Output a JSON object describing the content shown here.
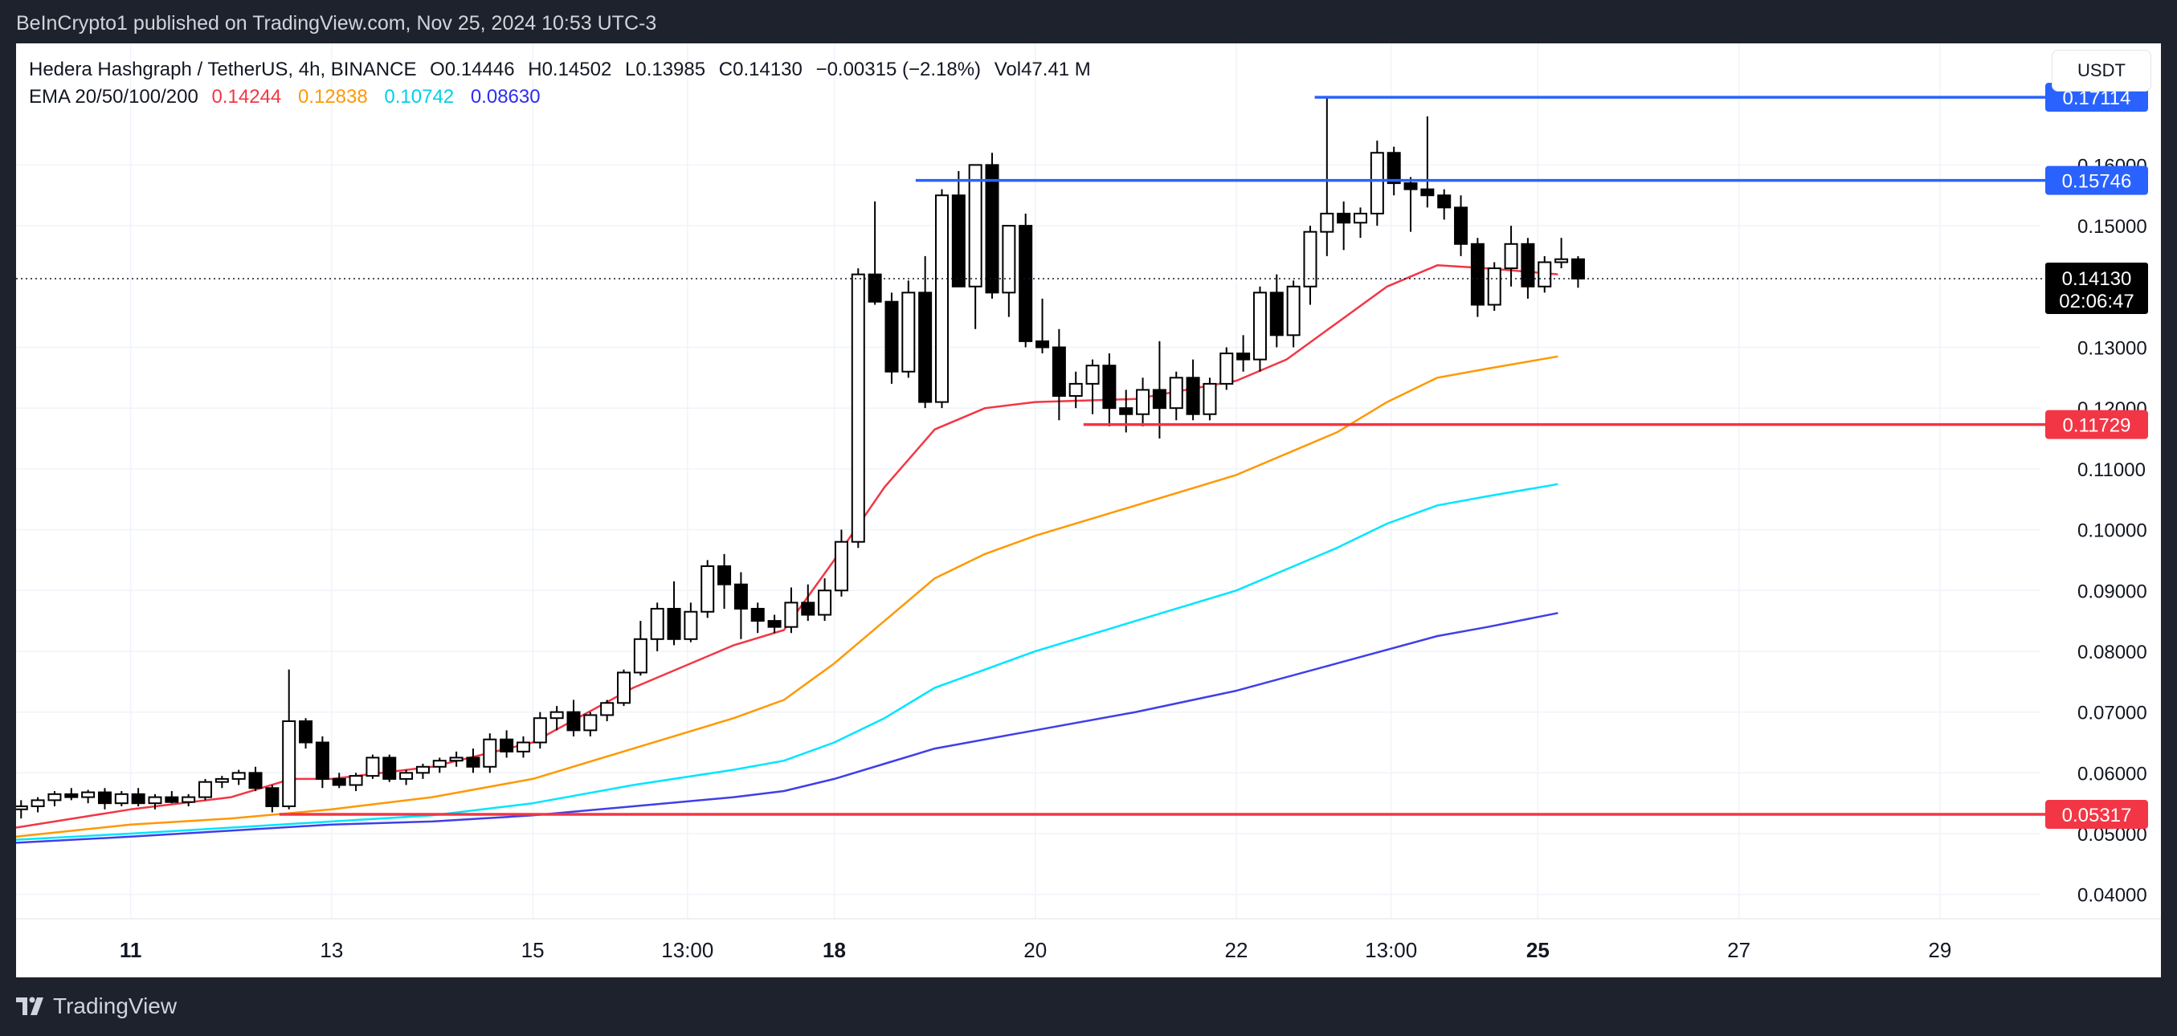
{
  "header": {
    "published": "BeInCrypto1 published on TradingView.com, Nov 25, 2024 10:53 UTC-3"
  },
  "legend": {
    "symbol": "Hedera Hashgraph / TetherUS, 4h, BINANCE",
    "open": "O0.14446",
    "high": "H0.14502",
    "low": "L0.13985",
    "close": "C0.14130",
    "change": "−0.00315 (−2.18%)",
    "volume": "Vol47.41 M",
    "ema_label": "EMA 20/50/100/200",
    "ema_values": [
      "0.14244",
      "0.12838",
      "0.10742",
      "0.08630"
    ]
  },
  "currency_button": "USDT",
  "footer": {
    "brand": "TradingView"
  },
  "colors": {
    "ema20": "#f23645",
    "ema50": "#ff9800",
    "ema100": "#00e5ff",
    "ema200": "#3f3fe8",
    "resistance": "#2962ff",
    "support": "#f23645",
    "candle_up": "#ffffff",
    "candle_down": "#000000"
  },
  "chart_data": {
    "type": "candlestick",
    "y_ticks": [
      "0.04000",
      "0.05000",
      "0.06000",
      "0.07000",
      "0.08000",
      "0.09000",
      "0.10000",
      "0.11000",
      "0.12000",
      "0.13000",
      "0.15000",
      "0.16000"
    ],
    "ylim": [
      0.036,
      0.18
    ],
    "x_ticks": [
      {
        "label": "11",
        "day": 11,
        "bold": true
      },
      {
        "label": "13",
        "day": 13,
        "bold": false
      },
      {
        "label": "15",
        "day": 15,
        "bold": false
      },
      {
        "label": "13:00",
        "day": 16.54,
        "bold": false
      },
      {
        "label": "18",
        "day": 18,
        "bold": true
      },
      {
        "label": "20",
        "day": 20,
        "bold": false
      },
      {
        "label": "22",
        "day": 22,
        "bold": false
      },
      {
        "label": "13:00",
        "day": 23.54,
        "bold": false
      },
      {
        "label": "25",
        "day": 25,
        "bold": true
      },
      {
        "label": "27",
        "day": 27,
        "bold": false
      },
      {
        "label": "29",
        "day": 29,
        "bold": false
      }
    ],
    "xlim": [
      9.86,
      30.0
    ],
    "current_price": {
      "value": 0.1413,
      "label": "0.14130",
      "countdown": "02:06:47"
    },
    "levels": [
      {
        "name": "resistance-2",
        "value": 0.17114,
        "label": "0.17114",
        "type": "resistance",
        "start_day": 22.78
      },
      {
        "name": "resistance-1",
        "value": 0.15746,
        "label": "0.15746",
        "type": "resistance",
        "start_day": 18.81
      },
      {
        "name": "support-1",
        "value": 0.11729,
        "label": "0.11729",
        "type": "support",
        "start_day": 20.48
      },
      {
        "name": "support-2",
        "value": 0.05317,
        "label": "0.05317",
        "type": "support",
        "start_day": 12.48
      }
    ],
    "candles": [
      [
        0.054,
        0.0555,
        0.0525,
        0.0545
      ],
      [
        0.0545,
        0.056,
        0.0535,
        0.0555
      ],
      [
        0.0555,
        0.057,
        0.0545,
        0.0565
      ],
      [
        0.0565,
        0.0575,
        0.0555,
        0.056
      ],
      [
        0.056,
        0.0572,
        0.055,
        0.0568
      ],
      [
        0.0568,
        0.0575,
        0.054,
        0.055
      ],
      [
        0.055,
        0.057,
        0.0545,
        0.0565
      ],
      [
        0.0565,
        0.0575,
        0.0545,
        0.055
      ],
      [
        0.055,
        0.0565,
        0.054,
        0.056
      ],
      [
        0.056,
        0.057,
        0.055,
        0.0552
      ],
      [
        0.0552,
        0.0565,
        0.0545,
        0.056
      ],
      [
        0.056,
        0.059,
        0.0555,
        0.0585
      ],
      [
        0.0585,
        0.0595,
        0.0575,
        0.059
      ],
      [
        0.059,
        0.0605,
        0.058,
        0.06
      ],
      [
        0.06,
        0.061,
        0.057,
        0.0575
      ],
      [
        0.0575,
        0.058,
        0.0535,
        0.0545
      ],
      [
        0.0545,
        0.077,
        0.054,
        0.0685
      ],
      [
        0.0685,
        0.069,
        0.064,
        0.065
      ],
      [
        0.065,
        0.066,
        0.0575,
        0.059
      ],
      [
        0.059,
        0.06,
        0.0575,
        0.058
      ],
      [
        0.058,
        0.06,
        0.057,
        0.0595
      ],
      [
        0.0595,
        0.063,
        0.059,
        0.0625
      ],
      [
        0.0625,
        0.063,
        0.0585,
        0.059
      ],
      [
        0.059,
        0.0605,
        0.058,
        0.06
      ],
      [
        0.06,
        0.0615,
        0.059,
        0.061
      ],
      [
        0.061,
        0.0625,
        0.06,
        0.062
      ],
      [
        0.062,
        0.0635,
        0.061,
        0.0625
      ],
      [
        0.0625,
        0.064,
        0.06,
        0.061
      ],
      [
        0.061,
        0.0665,
        0.06,
        0.0655
      ],
      [
        0.0655,
        0.067,
        0.0625,
        0.0635
      ],
      [
        0.0635,
        0.066,
        0.0625,
        0.065
      ],
      [
        0.065,
        0.07,
        0.064,
        0.069
      ],
      [
        0.069,
        0.071,
        0.067,
        0.07
      ],
      [
        0.07,
        0.072,
        0.066,
        0.067
      ],
      [
        0.067,
        0.07,
        0.066,
        0.0695
      ],
      [
        0.0695,
        0.072,
        0.0685,
        0.0715
      ],
      [
        0.0715,
        0.077,
        0.071,
        0.0765
      ],
      [
        0.0765,
        0.085,
        0.076,
        0.082
      ],
      [
        0.082,
        0.088,
        0.08,
        0.087
      ],
      [
        0.087,
        0.0915,
        0.081,
        0.082
      ],
      [
        0.082,
        0.088,
        0.0815,
        0.0865
      ],
      [
        0.0865,
        0.095,
        0.0855,
        0.094
      ],
      [
        0.094,
        0.096,
        0.087,
        0.091
      ],
      [
        0.091,
        0.093,
        0.082,
        0.087
      ],
      [
        0.087,
        0.088,
        0.083,
        0.085
      ],
      [
        0.085,
        0.086,
        0.083,
        0.084
      ],
      [
        0.084,
        0.0905,
        0.083,
        0.088
      ],
      [
        0.088,
        0.091,
        0.085,
        0.086
      ],
      [
        0.086,
        0.092,
        0.085,
        0.09
      ],
      [
        0.09,
        0.1,
        0.089,
        0.098
      ],
      [
        0.098,
        0.143,
        0.097,
        0.142
      ],
      [
        0.142,
        0.154,
        0.137,
        0.1375
      ],
      [
        0.1375,
        0.139,
        0.124,
        0.126
      ],
      [
        0.126,
        0.141,
        0.125,
        0.139
      ],
      [
        0.139,
        0.145,
        0.12,
        0.121
      ],
      [
        0.121,
        0.156,
        0.12,
        0.155
      ],
      [
        0.155,
        0.159,
        0.14,
        0.14
      ],
      [
        0.14,
        0.159,
        0.133,
        0.16
      ],
      [
        0.16,
        0.162,
        0.138,
        0.139
      ],
      [
        0.139,
        0.15,
        0.135,
        0.15
      ],
      [
        0.15,
        0.152,
        0.13,
        0.131
      ],
      [
        0.131,
        0.138,
        0.129,
        0.13
      ],
      [
        0.13,
        0.133,
        0.118,
        0.122
      ],
      [
        0.122,
        0.126,
        0.12,
        0.124
      ],
      [
        0.124,
        0.128,
        0.119,
        0.127
      ],
      [
        0.127,
        0.129,
        0.117,
        0.12
      ],
      [
        0.12,
        0.123,
        0.116,
        0.119
      ],
      [
        0.119,
        0.125,
        0.117,
        0.123
      ],
      [
        0.123,
        0.131,
        0.115,
        0.12
      ],
      [
        0.12,
        0.126,
        0.118,
        0.125
      ],
      [
        0.125,
        0.128,
        0.118,
        0.119
      ],
      [
        0.119,
        0.125,
        0.118,
        0.124
      ],
      [
        0.124,
        0.13,
        0.123,
        0.129
      ],
      [
        0.129,
        0.132,
        0.126,
        0.128
      ],
      [
        0.128,
        0.14,
        0.126,
        0.139
      ],
      [
        0.139,
        0.142,
        0.13,
        0.132
      ],
      [
        0.132,
        0.141,
        0.13,
        0.14
      ],
      [
        0.14,
        0.15,
        0.137,
        0.149
      ],
      [
        0.149,
        0.1711,
        0.145,
        0.152
      ],
      [
        0.152,
        0.154,
        0.146,
        0.1505
      ],
      [
        0.1505,
        0.153,
        0.148,
        0.152
      ],
      [
        0.152,
        0.164,
        0.15,
        0.162
      ],
      [
        0.162,
        0.163,
        0.155,
        0.157
      ],
      [
        0.157,
        0.158,
        0.149,
        0.156
      ],
      [
        0.156,
        0.168,
        0.153,
        0.155
      ],
      [
        0.155,
        0.156,
        0.151,
        0.153
      ],
      [
        0.153,
        0.155,
        0.145,
        0.147
      ],
      [
        0.147,
        0.148,
        0.135,
        0.137
      ],
      [
        0.137,
        0.144,
        0.136,
        0.143
      ],
      [
        0.143,
        0.15,
        0.14,
        0.147
      ],
      [
        0.147,
        0.148,
        0.138,
        0.14
      ],
      [
        0.14,
        0.145,
        0.139,
        0.144
      ],
      [
        0.144,
        0.148,
        0.143,
        0.1445
      ],
      [
        0.1445,
        0.145,
        0.1398,
        0.1413
      ]
    ],
    "ema": [
      {
        "name": "EMA 20",
        "values": [
          [
            9.86,
            0.051
          ],
          [
            11.0,
            0.054
          ],
          [
            12.0,
            0.056
          ],
          [
            12.6,
            0.059
          ],
          [
            13.0,
            0.059
          ],
          [
            14.0,
            0.061
          ],
          [
            15.0,
            0.065
          ],
          [
            16.0,
            0.074
          ],
          [
            17.0,
            0.081
          ],
          [
            17.5,
            0.0835
          ],
          [
            18.0,
            0.095
          ],
          [
            18.5,
            0.107
          ],
          [
            19.0,
            0.1165
          ],
          [
            19.5,
            0.12
          ],
          [
            20.0,
            0.121
          ],
          [
            21.0,
            0.1215
          ],
          [
            22.0,
            0.1245
          ],
          [
            22.5,
            0.128
          ],
          [
            23.0,
            0.134
          ],
          [
            23.5,
            0.14
          ],
          [
            24.0,
            0.1435
          ],
          [
            24.5,
            0.143
          ],
          [
            25.2,
            0.142
          ]
        ]
      },
      {
        "name": "EMA 50",
        "values": [
          [
            9.86,
            0.0495
          ],
          [
            11.0,
            0.0515
          ],
          [
            12.0,
            0.0525
          ],
          [
            13.0,
            0.054
          ],
          [
            14.0,
            0.056
          ],
          [
            15.0,
            0.059
          ],
          [
            16.0,
            0.064
          ],
          [
            17.0,
            0.069
          ],
          [
            17.5,
            0.072
          ],
          [
            18.0,
            0.078
          ],
          [
            18.5,
            0.085
          ],
          [
            19.0,
            0.092
          ],
          [
            19.5,
            0.096
          ],
          [
            20.0,
            0.099
          ],
          [
            21.0,
            0.104
          ],
          [
            22.0,
            0.109
          ],
          [
            23.0,
            0.116
          ],
          [
            23.5,
            0.121
          ],
          [
            24.0,
            0.125
          ],
          [
            24.5,
            0.1265
          ],
          [
            25.2,
            0.1285
          ]
        ]
      },
      {
        "name": "EMA 100",
        "values": [
          [
            9.86,
            0.049
          ],
          [
            11.0,
            0.05
          ],
          [
            12.0,
            0.051
          ],
          [
            13.0,
            0.052
          ],
          [
            14.0,
            0.053
          ],
          [
            15.0,
            0.055
          ],
          [
            16.0,
            0.058
          ],
          [
            17.0,
            0.0605
          ],
          [
            17.5,
            0.062
          ],
          [
            18.0,
            0.065
          ],
          [
            18.5,
            0.069
          ],
          [
            19.0,
            0.074
          ],
          [
            20.0,
            0.08
          ],
          [
            21.0,
            0.085
          ],
          [
            22.0,
            0.09
          ],
          [
            23.0,
            0.097
          ],
          [
            23.5,
            0.101
          ],
          [
            24.0,
            0.104
          ],
          [
            24.5,
            0.1055
          ],
          [
            25.2,
            0.1075
          ]
        ]
      },
      {
        "name": "EMA 200",
        "values": [
          [
            9.86,
            0.0485
          ],
          [
            11.0,
            0.0495
          ],
          [
            12.0,
            0.0505
          ],
          [
            13.0,
            0.0515
          ],
          [
            14.0,
            0.052
          ],
          [
            15.0,
            0.053
          ],
          [
            16.0,
            0.0545
          ],
          [
            17.0,
            0.056
          ],
          [
            17.5,
            0.057
          ],
          [
            18.0,
            0.059
          ],
          [
            18.5,
            0.0615
          ],
          [
            19.0,
            0.064
          ],
          [
            20.0,
            0.067
          ],
          [
            21.0,
            0.07
          ],
          [
            22.0,
            0.0735
          ],
          [
            23.0,
            0.078
          ],
          [
            24.0,
            0.0825
          ],
          [
            24.5,
            0.084
          ],
          [
            25.2,
            0.0863
          ]
        ]
      }
    ]
  }
}
